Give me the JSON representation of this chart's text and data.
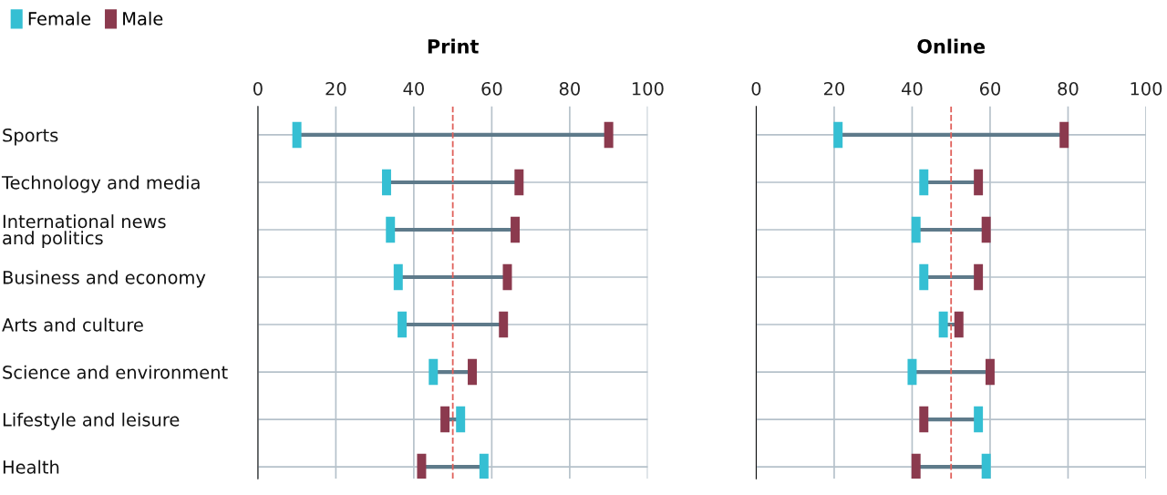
{
  "chart_data": [
    {
      "type": "scatter",
      "title": "Print",
      "categories": [
        "Sports",
        "Technology and media",
        "International news\nand politics",
        "Business and economy",
        "Arts and culture",
        "Science and environment",
        "Lifestyle and leisure",
        "Health"
      ],
      "series": [
        {
          "name": "Female",
          "color": "#35bfd3",
          "values": [
            10,
            33,
            34,
            36,
            37,
            45,
            52,
            58
          ]
        },
        {
          "name": "Male",
          "color": "#8b3a4e",
          "values": [
            90,
            67,
            66,
            64,
            63,
            55,
            48,
            42
          ]
        }
      ],
      "orientation": "horizontal",
      "xlim": [
        0,
        100
      ],
      "xticks": [
        0,
        20,
        40,
        60,
        80,
        100
      ],
      "grid": true,
      "legend": "top left",
      "ref_lines": [
        {
          "axis": "x",
          "value": 50,
          "color": "#e0605a",
          "line_style": "dashed"
        }
      ]
    },
    {
      "type": "scatter",
      "title": "Online",
      "categories": [
        null,
        null,
        null,
        null,
        null,
        null,
        null,
        null
      ],
      "series": [
        {
          "color": "#35bfd3",
          "values": [
            21,
            43,
            41,
            43,
            48,
            40,
            57,
            59
          ]
        },
        {
          "color": "#8b3a4e",
          "values": [
            79,
            57,
            59,
            57,
            52,
            60,
            43,
            41
          ]
        }
      ],
      "orientation": "horizontal",
      "xlim": [
        0,
        100
      ],
      "xticks": [
        0,
        20,
        40,
        60,
        80,
        100
      ],
      "grid": true,
      "tick_labels": "x",
      "ref_lines": [
        {
          "axis": "x",
          "value": 50,
          "color": "#e0605a",
          "line_style": "dashed"
        }
      ]
    }
  ]
}
